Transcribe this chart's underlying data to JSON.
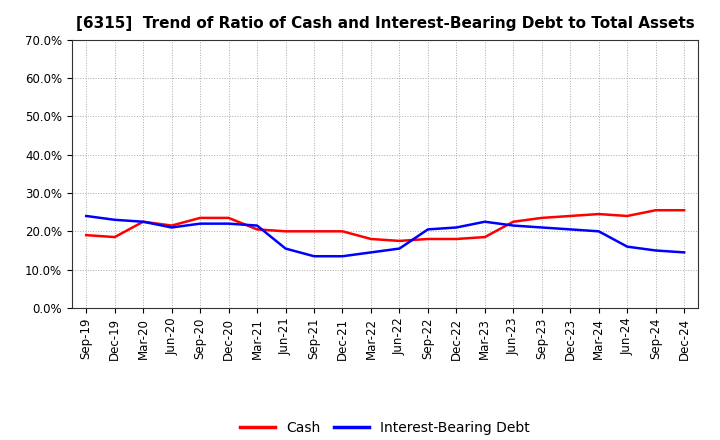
{
  "title": "[6315]  Trend of Ratio of Cash and Interest-Bearing Debt to Total Assets",
  "x_labels": [
    "Sep-19",
    "Dec-19",
    "Mar-20",
    "Jun-20",
    "Sep-20",
    "Dec-20",
    "Mar-21",
    "Jun-21",
    "Sep-21",
    "Dec-21",
    "Mar-22",
    "Jun-22",
    "Sep-22",
    "Dec-22",
    "Mar-23",
    "Jun-23",
    "Sep-23",
    "Dec-23",
    "Mar-24",
    "Jun-24",
    "Sep-24",
    "Dec-24"
  ],
  "cash": [
    19.0,
    18.5,
    22.5,
    21.5,
    23.5,
    23.5,
    20.5,
    20.0,
    20.0,
    20.0,
    18.0,
    17.5,
    18.0,
    18.0,
    18.5,
    22.5,
    23.5,
    24.0,
    24.5,
    24.0,
    25.5,
    25.5
  ],
  "interest_bearing_debt": [
    24.0,
    23.0,
    22.5,
    21.0,
    22.0,
    22.0,
    21.5,
    15.5,
    13.5,
    13.5,
    14.5,
    15.5,
    20.5,
    21.0,
    22.5,
    21.5,
    21.0,
    20.5,
    20.0,
    16.0,
    15.0,
    14.5
  ],
  "ylim": [
    0,
    70
  ],
  "yticks": [
    0,
    10,
    20,
    30,
    40,
    50,
    60,
    70
  ],
  "cash_color": "#ff0000",
  "debt_color": "#0000ff",
  "grid_color": "#aaaaaa",
  "background_color": "#ffffff",
  "legend_cash": "Cash",
  "legend_debt": "Interest-Bearing Debt",
  "title_fontsize": 11,
  "tick_fontsize": 8.5,
  "legend_fontsize": 10
}
